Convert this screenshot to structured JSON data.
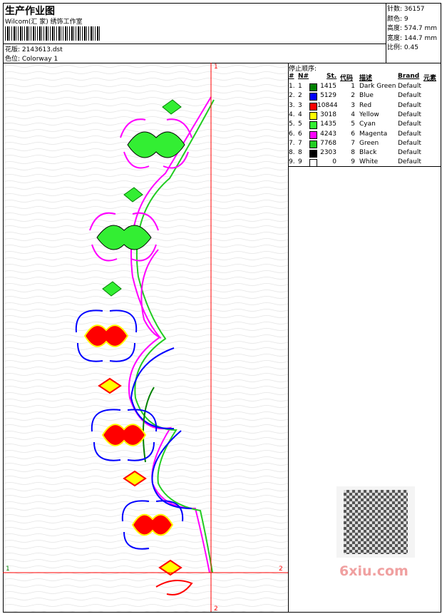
{
  "header": {
    "title": "生产作业图",
    "company": "Wilcom(汇 家) 绣饰工作室",
    "design_file": "花版: 2143613.dst",
    "colorway": "色位: Colorway 1"
  },
  "summary": [
    "针数: 36157",
    "颜色: 9",
    "高度: 574.7 mm",
    "宽度: 144.7 mm",
    "比例: 0.45"
  ],
  "stop_sequence": {
    "title": "停止顺序:",
    "columns": [
      "#",
      "N#",
      "St.",
      "代码",
      "描述",
      "Brand",
      "元素"
    ],
    "rows": [
      {
        "index": "1.",
        "needle": "1",
        "color": "#008000",
        "stitches": "1415",
        "code": "1",
        "description": "Dark Green",
        "brand": "Default"
      },
      {
        "index": "2.",
        "needle": "2",
        "color": "#0000ff",
        "stitches": "5129",
        "code": "2",
        "description": "Blue",
        "brand": "Default"
      },
      {
        "index": "3.",
        "needle": "3",
        "color": "#ff0000",
        "stitches": "10844",
        "code": "3",
        "description": "Red",
        "brand": "Default"
      },
      {
        "index": "4.",
        "needle": "4",
        "color": "#ffff00",
        "stitches": "3018",
        "code": "4",
        "description": "Yellow",
        "brand": "Default"
      },
      {
        "index": "5.",
        "needle": "5",
        "color": "#33ee33",
        "stitches": "1435",
        "code": "5",
        "description": "Cyan",
        "brand": "Default"
      },
      {
        "index": "6.",
        "needle": "6",
        "color": "#ff00ff",
        "stitches": "4243",
        "code": "6",
        "description": "Magenta",
        "brand": "Default"
      },
      {
        "index": "7.",
        "needle": "7",
        "color": "#22cc22",
        "stitches": "7768",
        "code": "7",
        "description": "Green",
        "brand": "Default"
      },
      {
        "index": "8.",
        "needle": "8",
        "color": "#000000",
        "stitches": "2303",
        "code": "8",
        "description": "Black",
        "brand": "Default"
      },
      {
        "index": "9.",
        "needle": "9",
        "color": "#ffffff",
        "stitches": "0",
        "code": "9",
        "description": "White",
        "brand": "Default"
      }
    ]
  },
  "axis_markers": {
    "top": "1",
    "bottom": "2",
    "left": "1",
    "right": "2"
  },
  "watermark": "6xiu.com"
}
